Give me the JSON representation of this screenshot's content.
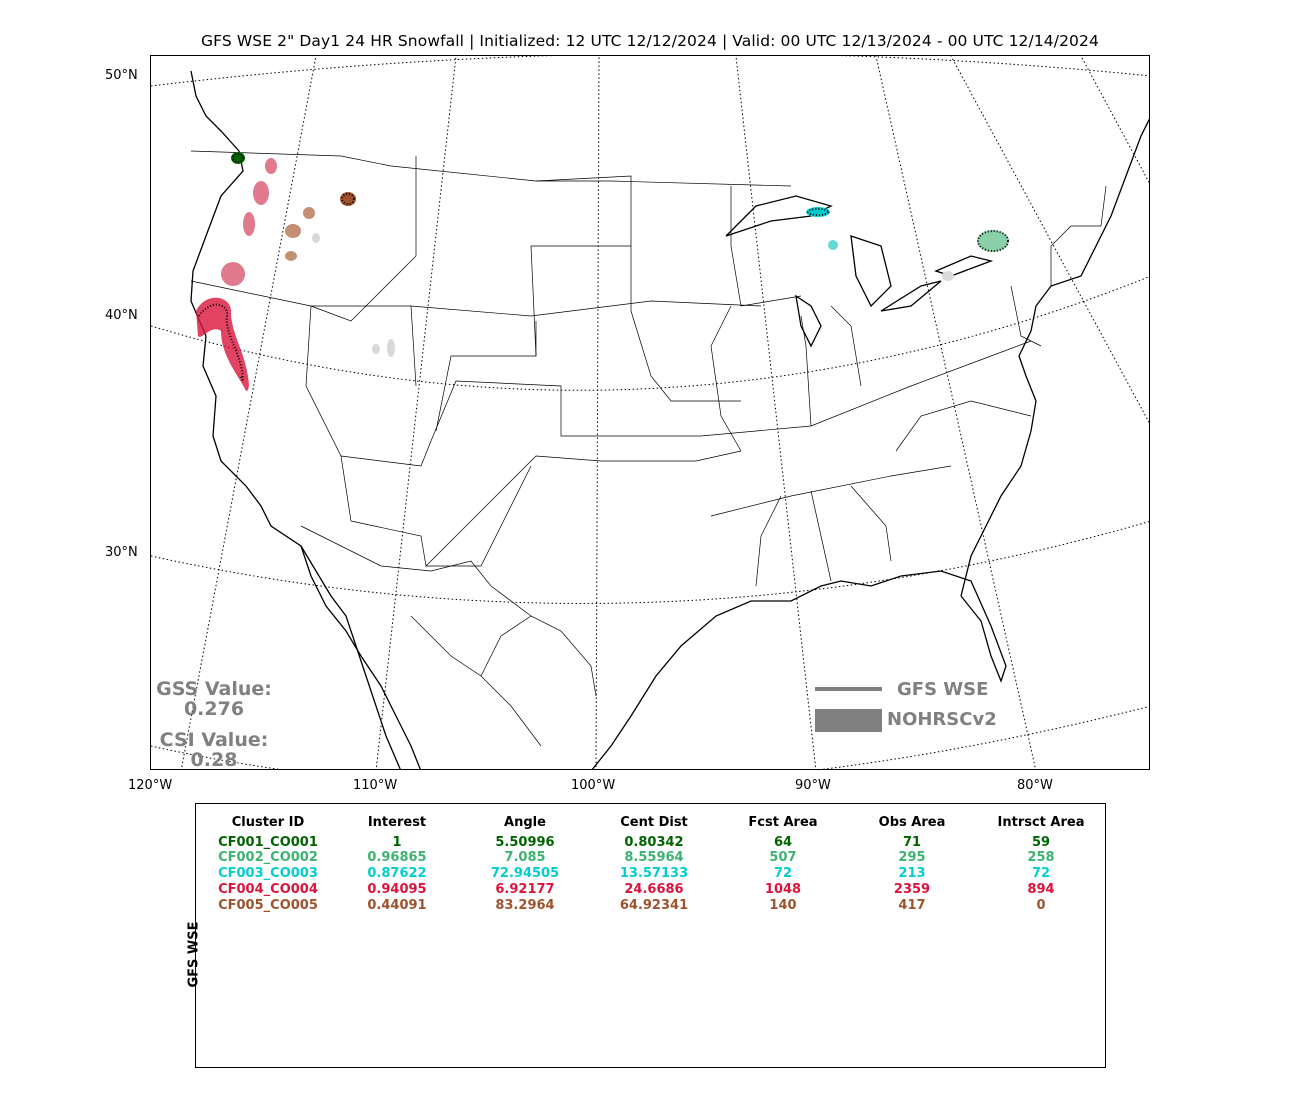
{
  "title": "GFS WSE 2\" Day1 24 HR Snowfall | Initialized: 12 UTC 12/12/2024 | Valid: 00 UTC 12/13/2024 - 00 UTC 12/14/2024",
  "map": {
    "lat_labels": [
      "50°N",
      "40°N",
      "30°N"
    ],
    "lon_labels": [
      "120°W",
      "110°W",
      "100°W",
      "90°W",
      "80°W"
    ],
    "gss_label": "GSS Value:",
    "gss_value": "0.276",
    "csi_label": "CSI Value:",
    "csi_value": "0.28",
    "legend": {
      "forecast": "GFS WSE",
      "observed": "NOHRSCv2"
    },
    "colors": {
      "legend_gray": "#808080"
    }
  },
  "table": {
    "row_label": "GFS WSE",
    "headers": [
      "Cluster ID",
      "Interest",
      "Angle",
      "Cent Dist",
      "Fcst Area",
      "Obs Area",
      "Intrsct Area"
    ],
    "rows": [
      {
        "color": "#006400",
        "cells": [
          "CF001_CO001",
          "1",
          "5.50996",
          "0.80342",
          "64",
          "71",
          "59"
        ]
      },
      {
        "color": "#3cb371",
        "cells": [
          "CF002_CO002",
          "0.96865",
          "7.085",
          "8.55964",
          "507",
          "295",
          "258"
        ]
      },
      {
        "color": "#00ced1",
        "cells": [
          "CF003_CO003",
          "0.87622",
          "72.94505",
          "13.57133",
          "72",
          "213",
          "72"
        ]
      },
      {
        "color": "#dc143c",
        "cells": [
          "CF004_CO004",
          "0.94095",
          "6.92177",
          "24.6686",
          "1048",
          "2359",
          "894"
        ]
      },
      {
        "color": "#a0522d",
        "cells": [
          "CF005_CO005",
          "0.44091",
          "83.2964",
          "64.92341",
          "140",
          "417",
          "0"
        ]
      }
    ]
  }
}
